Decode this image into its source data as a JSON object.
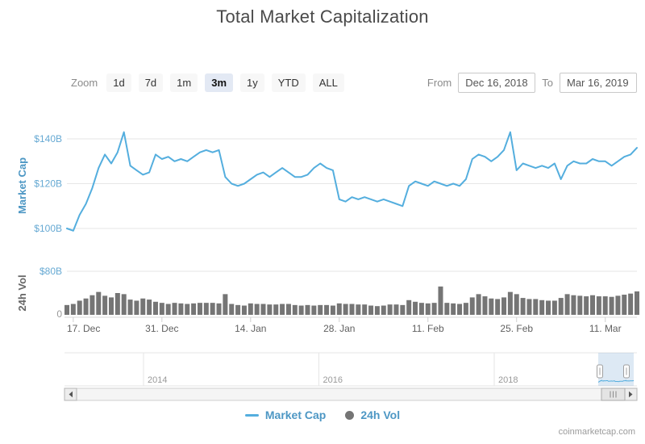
{
  "header": {
    "title": "Total Market Capitalization"
  },
  "toolbar": {
    "zoom_label": "Zoom",
    "buttons": [
      {
        "label": "1d",
        "active": false
      },
      {
        "label": "7d",
        "active": false
      },
      {
        "label": "1m",
        "active": false
      },
      {
        "label": "3m",
        "active": true
      },
      {
        "label": "1y",
        "active": false
      },
      {
        "label": "YTD",
        "active": false
      },
      {
        "label": "ALL",
        "active": false
      }
    ],
    "from_label": "From",
    "from_value": "Dec 16, 2018",
    "to_label": "To",
    "to_value": "Mar 16, 2019"
  },
  "colors": {
    "line": "#54aede",
    "volume": "#757575",
    "grid": "#e6e6e6",
    "axis_tick_blue": "#66a9d3",
    "axis_title_blue": "#4d97c4",
    "axis_gray": "#666666",
    "muted": "#999999",
    "selection_fill": "#6699cc",
    "legend_text": "#4d97c4"
  },
  "icons": {
    "scrollbar_left_arrow": "left-triangle",
    "scrollbar_right_arrow": "right-triangle",
    "navigator_handle_grip": "vertical-bar",
    "scrollbar_thumb_grip": "three-vertical-bars"
  },
  "chart_data": {
    "type": "line+column",
    "title": "Total Market Capitalization",
    "start_date": "Dec 16, 2018",
    "end_date": "Mar 16, 2019",
    "x_tick_labels": [
      "17. Dec",
      "31. Dec",
      "14. Jan",
      "28. Jan",
      "11. Feb",
      "25. Feb",
      "11. Mar"
    ],
    "x_tick_day_index": [
      1,
      15,
      29,
      43,
      57,
      71,
      85
    ],
    "panes": [
      {
        "name": "market-cap",
        "axis_title": "Market Cap",
        "unit": "$B",
        "tick_values": [
          100,
          120,
          140
        ],
        "tick_labels": [
          "$100B",
          "$120B",
          "$140B"
        ],
        "ylim": [
          95,
          148
        ]
      },
      {
        "name": "volume",
        "axis_title": "24h Vol",
        "unit": "$B",
        "tick_values": [
          0,
          80
        ],
        "tick_labels": [
          "0",
          "$80B"
        ],
        "ylim": [
          0,
          80
        ]
      }
    ],
    "series": [
      {
        "name": "Market Cap",
        "type": "line",
        "pane": 0,
        "unit": "$B",
        "values": [
          100,
          99,
          106,
          111,
          118,
          127,
          133,
          129,
          134,
          143,
          128,
          126,
          124,
          125,
          133,
          131,
          132,
          130,
          131,
          130,
          132,
          134,
          135,
          134,
          135,
          123,
          120,
          119,
          120,
          122,
          124,
          125,
          123,
          125,
          127,
          125,
          123,
          123,
          124,
          127,
          129,
          127,
          126,
          113,
          112,
          114,
          113,
          114,
          113,
          112,
          113,
          112,
          111,
          110,
          119,
          121,
          120,
          119,
          121,
          120,
          119,
          120,
          119,
          122,
          131,
          133,
          132,
          130,
          132,
          135,
          143,
          126,
          129,
          128,
          127,
          128,
          127,
          129,
          122,
          128,
          130,
          129,
          129,
          131,
          130,
          130,
          128,
          130,
          132,
          133,
          136
        ]
      },
      {
        "name": "24h Vol",
        "type": "column",
        "pane": 1,
        "unit": "$B",
        "values": [
          18,
          20,
          26,
          30,
          36,
          42,
          35,
          32,
          40,
          38,
          28,
          26,
          30,
          28,
          24,
          22,
          20,
          22,
          21,
          20,
          21,
          22,
          22,
          22,
          21,
          38,
          20,
          18,
          17,
          21,
          20,
          20,
          19,
          19,
          20,
          20,
          18,
          17,
          18,
          17,
          18,
          18,
          17,
          21,
          20,
          20,
          19,
          19,
          17,
          16,
          17,
          19,
          19,
          18,
          27,
          24,
          22,
          21,
          22,
          52,
          22,
          21,
          20,
          22,
          32,
          38,
          34,
          30,
          29,
          32,
          42,
          38,
          31,
          29,
          29,
          27,
          26,
          26,
          31,
          38,
          36,
          35,
          34,
          36,
          34,
          34,
          33,
          35,
          37,
          39,
          43
        ]
      }
    ],
    "navigator": {
      "year_labels": [
        "2014",
        "2016",
        "2018"
      ],
      "ylim": [
        0,
        850
      ],
      "selected_from": "Dec 16, 2018",
      "selected_to": "Mar 16, 2019"
    }
  },
  "legend": {
    "items": [
      {
        "label": "Market Cap",
        "symbol": "line"
      },
      {
        "label": "24h Vol",
        "symbol": "circle"
      }
    ]
  },
  "watermark": "coinmarketcap.com"
}
